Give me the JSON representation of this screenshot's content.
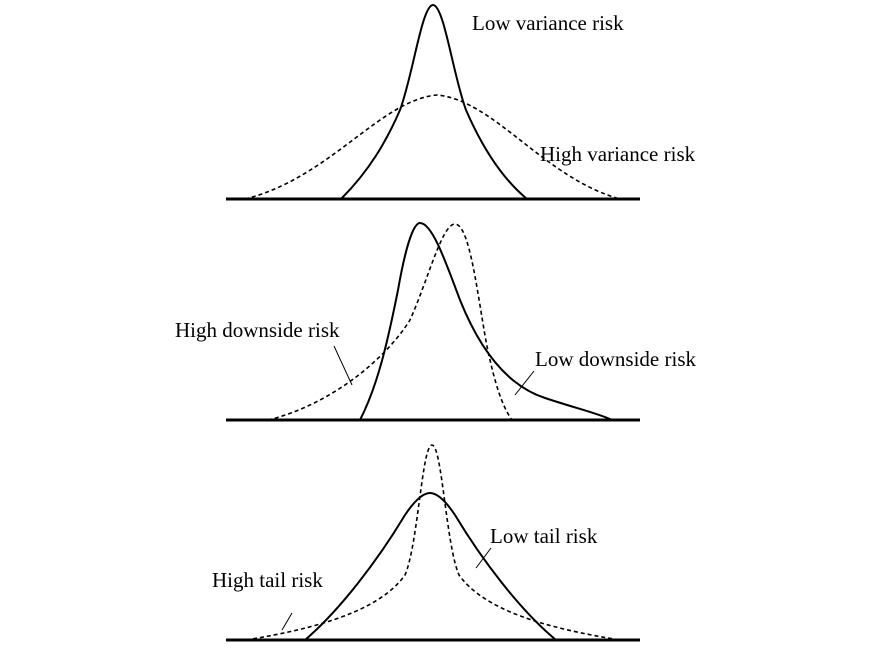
{
  "panels": [
    {
      "id": "variance",
      "labels": {
        "solid": "Low variance risk",
        "dashed": "High variance risk"
      }
    },
    {
      "id": "downside",
      "labels": {
        "dashed": "High downside risk",
        "solid": "Low downside risk"
      }
    },
    {
      "id": "tail",
      "labels": {
        "solid": "Low tail risk",
        "dashed": "High tail risk"
      }
    }
  ],
  "colors": {
    "ink": "#000000",
    "background": "#ffffff"
  }
}
